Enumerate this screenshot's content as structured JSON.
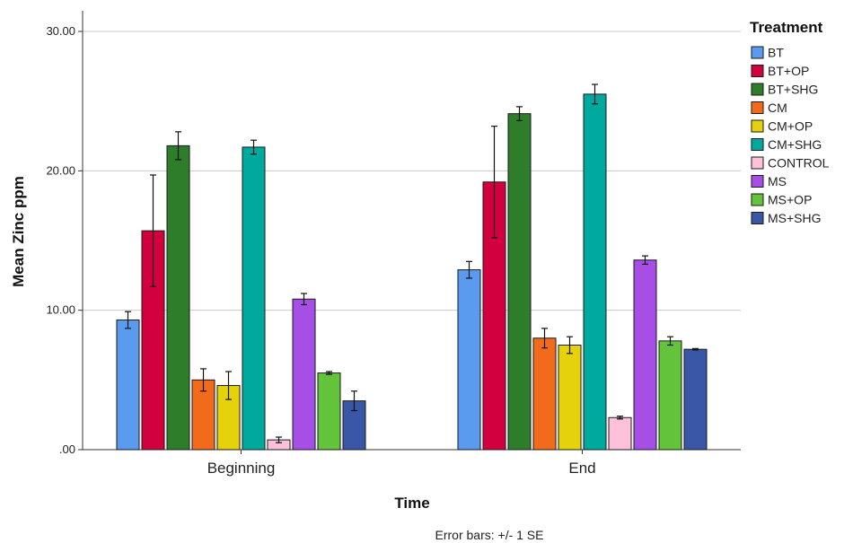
{
  "chart_data": {
    "type": "bar",
    "xlabel": "Time",
    "ylabel": "Mean Zinc ppm",
    "ylim": [
      0,
      30
    ],
    "yticks": [
      {
        "value": 0,
        "label": ".00"
      },
      {
        "value": 10,
        "label": "10.00"
      },
      {
        "value": 20,
        "label": "20.00"
      },
      {
        "value": 30,
        "label": "30.00"
      }
    ],
    "grid": "horizontal",
    "legend_title": "Treatment",
    "legend_position": "top-right",
    "footnote": "Error bars: +/- 1 SE",
    "categories": [
      "Beginning",
      "End"
    ],
    "series": [
      {
        "name": "BT",
        "color": "#5b9bef",
        "values": [
          9.3,
          12.9
        ],
        "se": [
          0.6,
          0.6
        ]
      },
      {
        "name": "BT+OP",
        "color": "#d2003c",
        "values": [
          15.7,
          19.2
        ],
        "se": [
          4.0,
          4.0
        ]
      },
      {
        "name": "BT+SHG",
        "color": "#2e7d2a",
        "values": [
          21.8,
          24.1
        ],
        "se": [
          1.0,
          0.5
        ]
      },
      {
        "name": "CM",
        "color": "#f26b1d",
        "values": [
          5.0,
          8.0
        ],
        "se": [
          0.8,
          0.7
        ]
      },
      {
        "name": "CM+OP",
        "color": "#e6d20a",
        "values": [
          4.6,
          7.5
        ],
        "se": [
          1.0,
          0.6
        ]
      },
      {
        "name": "CM+SHG",
        "color": "#00a99d",
        "values": [
          21.7,
          25.5
        ],
        "se": [
          0.5,
          0.7
        ]
      },
      {
        "name": "CONTROL",
        "color": "#ffc0d9",
        "values": [
          0.7,
          2.3
        ],
        "se": [
          0.2,
          0.1
        ]
      },
      {
        "name": "MS",
        "color": "#a64ee6",
        "values": [
          10.8,
          13.6
        ],
        "se": [
          0.4,
          0.3
        ]
      },
      {
        "name": "MS+OP",
        "color": "#63c33b",
        "values": [
          5.5,
          7.8
        ],
        "se": [
          0.1,
          0.3
        ]
      },
      {
        "name": "MS+SHG",
        "color": "#3a57a7",
        "values": [
          3.5,
          7.2
        ],
        "se": [
          0.7,
          0.05
        ]
      }
    ]
  }
}
